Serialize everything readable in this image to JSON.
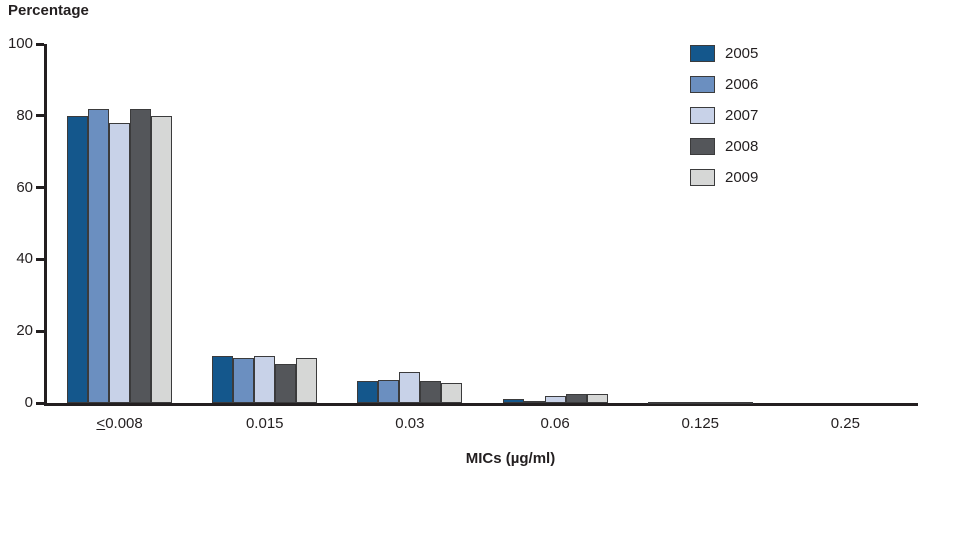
{
  "title": "Percentage",
  "xlabel": "MICs (µg/ml)",
  "chart_data": {
    "type": "bar",
    "categories": [
      "<0.008",
      "0.015",
      "0.03",
      "0.06",
      "0.125",
      "0.25"
    ],
    "series": [
      {
        "name": "2005",
        "color": "#14578c",
        "values": [
          80,
          13,
          6,
          1,
          0.3,
          0
        ]
      },
      {
        "name": "2006",
        "color": "#6b8fc0",
        "values": [
          82,
          12.5,
          6.5,
          0.5,
          0.2,
          0
        ]
      },
      {
        "name": "2007",
        "color": "#c8d2e8",
        "values": [
          78,
          13,
          8.5,
          2,
          0.2,
          0
        ]
      },
      {
        "name": "2008",
        "color": "#54565a",
        "values": [
          82,
          11,
          6,
          2.5,
          0.3,
          0
        ]
      },
      {
        "name": "2009",
        "color": "#d6d7d6",
        "values": [
          80,
          12.5,
          5.5,
          2.5,
          0.2,
          0
        ]
      }
    ],
    "ylabel": "Percentage",
    "xlabel": "MICs (µg/ml)",
    "ylim": [
      0,
      100
    ],
    "yticks": [
      0,
      20,
      40,
      60,
      80,
      100
    ],
    "grid": false,
    "legend_position": "top-right"
  }
}
